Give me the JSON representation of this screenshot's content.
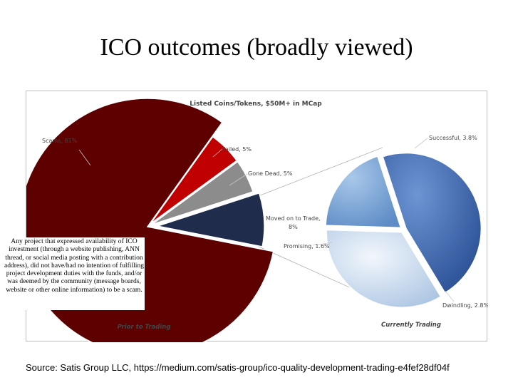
{
  "slide": {
    "title": "ICO outcomes (broadly viewed)",
    "callout": "Any project that expressed availability of ICO investment (through a website publishing, ANN thread, or social media posting with a contribution address), did not have/had no intention of fulfilling project development duties with the funds, and/or was deemed by the community (message boards, website or other online information) to be a scam.",
    "source": "Source: Satis Group LLC, https://medium.com/satis-group/ico-quality-development-trading-e4fef28df04f"
  },
  "chart_data": [
    {
      "type": "pie",
      "title": "Listed Coins/Tokens, $50M+ in MCap",
      "subtitle": "Prior to Trading",
      "labels": [
        "Scams, 81%",
        "Failed, 5%",
        "Gone Dead, 5%",
        "Moved on to Trade, 8%"
      ],
      "categories": [
        "Scams",
        "Failed",
        "Gone Dead",
        "Moved on to Trade"
      ],
      "values": [
        81,
        5,
        5,
        8
      ],
      "colors": [
        "#5e0000",
        "#c00000",
        "#8c8c8c",
        "#1f2c4c"
      ]
    },
    {
      "type": "pie",
      "title": "",
      "subtitle": "Currently Trading",
      "labels": [
        "Successful, 3.8%",
        "Promising, 1.6%",
        "Dwindling, 2.8%"
      ],
      "categories": [
        "Successful",
        "Promising",
        "Dwindling"
      ],
      "values": [
        3.8,
        1.6,
        2.8
      ],
      "colors": [
        "#3a66b0",
        "#7fa8d8",
        "#c9dcef"
      ]
    }
  ]
}
